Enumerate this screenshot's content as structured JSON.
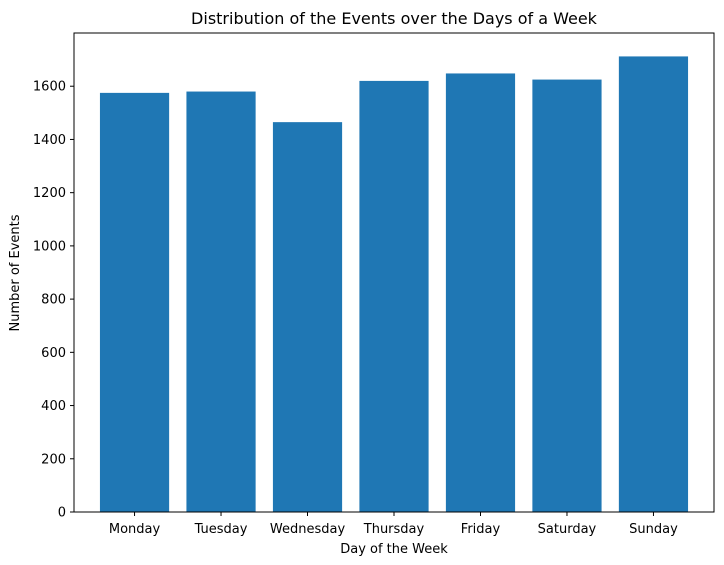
{
  "chart_data": {
    "type": "bar",
    "title": "Distribution of the Events over the Days of a Week",
    "xlabel": "Day of the Week",
    "ylabel": "Number of Events",
    "categories": [
      "Monday",
      "Tuesday",
      "Wednesday",
      "Thursday",
      "Friday",
      "Saturday",
      "Sunday"
    ],
    "values": [
      1575,
      1580,
      1465,
      1620,
      1648,
      1625,
      1712
    ],
    "ylim": [
      0,
      1800
    ],
    "yticks": [
      0,
      200,
      400,
      600,
      800,
      1000,
      1200,
      1400,
      1600
    ],
    "grid": false,
    "legend": "none",
    "bar_color": "#1f77b4"
  }
}
